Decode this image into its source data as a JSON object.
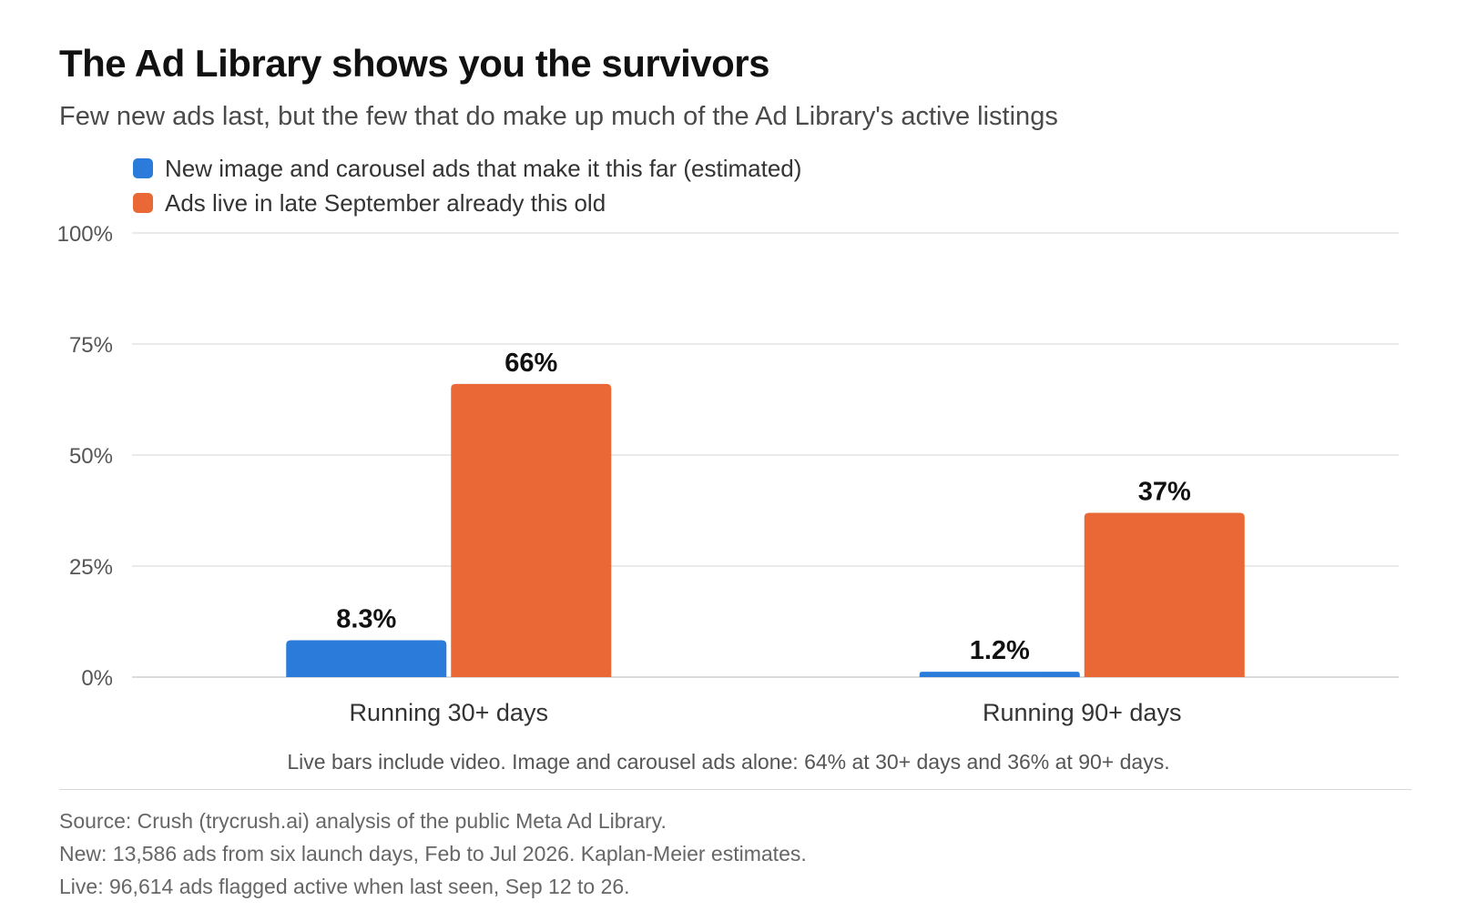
{
  "title": "The Ad Library shows you the survivors",
  "subtitle": "Few new ads last, but the few that do make up much of the Ad Library's active listings",
  "note": "Live bars include video. Image and carousel ads alone: 64% at 30+ days and 36% at 90+ days.",
  "footer": [
    "Source: Crush (trycrush.ai) analysis of the public Meta Ad Library.",
    "New: 13,586 ads from six launch days, Feb to Jul 2026. Kaplan-Meier estimates.",
    "Live: 96,614 ads flagged active when last seen, Sep 12 to 26."
  ],
  "chart_data": {
    "type": "bar",
    "title": "The Ad Library shows you the survivors",
    "subtitle": "Few new ads last, but the few that do make up much of the Ad Library's active listings",
    "categories": [
      "Running 30+ days",
      "Running 90+ days"
    ],
    "series": [
      {
        "name": "New image and carousel ads that make it this far (estimated)",
        "values": [
          8.3,
          1.2
        ],
        "labels": [
          "8.3%",
          "1.2%"
        ],
        "color": "#2B7BDB"
      },
      {
        "name": "Ads live in late September already this old",
        "values": [
          66,
          37
        ],
        "labels": [
          "66%",
          "37%"
        ],
        "color": "#EA6835"
      }
    ],
    "ylim": [
      0,
      100
    ],
    "yticks": [
      0,
      25,
      50,
      75,
      100
    ],
    "ytick_labels": [
      "0%",
      "25%",
      "50%",
      "75%",
      "100%"
    ],
    "xlabel": "",
    "ylabel": "",
    "grid": true,
    "legend": "top-left"
  }
}
